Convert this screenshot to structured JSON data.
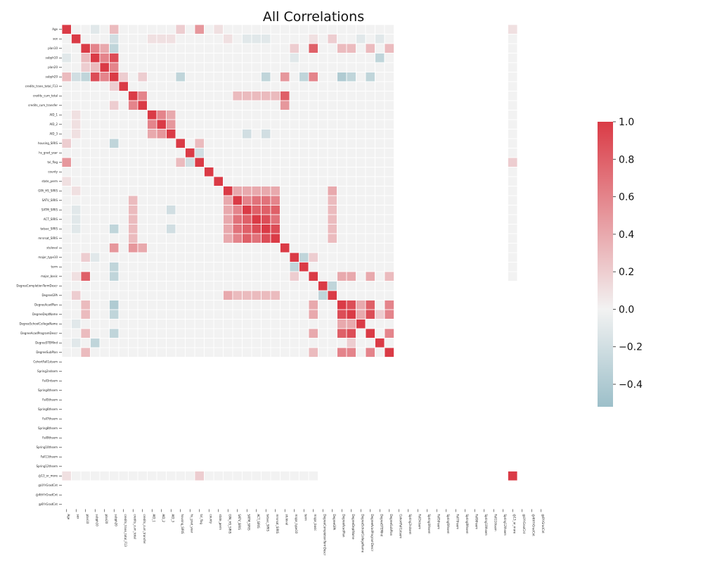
{
  "chart_data": {
    "type": "heatmap",
    "title": "All Correlations",
    "variables": [
      "Age",
      "sex",
      "plan10",
      "subph10",
      "plan20",
      "subph20",
      "credits_trans_total_F13",
      "credits_cum_total",
      "credits_cum_transfer",
      "AID_1",
      "AID_2",
      "AID_3",
      "housing_SIRIS",
      "hs_grad_year",
      "txl_flag",
      "county",
      "state_perm",
      "GPA_HS_SIRIS",
      "SATV_SIRIS",
      "SATM_SIRIS",
      "ACT_SIRIS",
      "tatsac_SIRIS",
      "mrsrsat_SIRIS",
      "stuleval",
      "major_type10",
      "term",
      "major_basic",
      "DegreeCompletionTermDescr",
      "DegreeGPA",
      "DegreeAcadPlan",
      "DegreeDeptName",
      "DegreeSchoolCollegeName",
      "DegreeAcadProgramDescr",
      "DegreeSTEMInd",
      "DegreeSubPlan",
      "CohortFall1stsem",
      "Spring2ndsem",
      "Fall3rdsem",
      "Spring4thsem",
      "Fall5thsem",
      "Spring6thsem",
      "Fall7thsem",
      "Spring8thsem",
      "Fall9thsem",
      "Spring10thsem",
      "Fall11thsem",
      "Spring12thsem",
      "@13_or_more",
      "@UYrGradCnt",
      "@4thYrGradCnt",
      "@6YrGradCnt"
    ],
    "colorbar": {
      "min": -0.52,
      "max": 1.0,
      "ticks": [
        1.0,
        0.8,
        0.6,
        0.4,
        0.2,
        0.0,
        -0.2,
        -0.4
      ],
      "tick_labels": [
        "1.0",
        "0.8",
        "0.6",
        "0.4",
        "0.2",
        "0.0",
        "−0.2",
        "−0.4"
      ]
    },
    "colors": {
      "negative": "#9cbfc9",
      "zero": "#f2f2f2",
      "positive": "#da3b46"
    },
    "blank_from_index": 35,
    "blank_tail_row_exceptions": [
      47
    ],
    "blank_tail_col_exceptions": [
      47
    ],
    "cells": [
      [
        0,
        0,
        1.0
      ],
      [
        0,
        3,
        -0.1
      ],
      [
        0,
        5,
        0.3
      ],
      [
        0,
        12,
        0.2
      ],
      [
        0,
        14,
        0.5
      ],
      [
        0,
        16,
        0.1
      ],
      [
        1,
        1,
        1.0
      ],
      [
        1,
        5,
        -0.2
      ],
      [
        1,
        9,
        0.1
      ],
      [
        1,
        10,
        0.1
      ],
      [
        1,
        11,
        0.1
      ],
      [
        1,
        17,
        0.1
      ],
      [
        1,
        19,
        -0.1
      ],
      [
        1,
        20,
        -0.1
      ],
      [
        1,
        21,
        -0.1
      ],
      [
        1,
        26,
        0.1
      ],
      [
        1,
        28,
        0.2
      ],
      [
        1,
        31,
        -0.1
      ],
      [
        1,
        33,
        -0.1
      ],
      [
        2,
        2,
        1.0
      ],
      [
        2,
        3,
        0.6
      ],
      [
        2,
        4,
        0.4
      ],
      [
        2,
        5,
        -0.3
      ],
      [
        2,
        24,
        0.2
      ],
      [
        2,
        26,
        0.8
      ],
      [
        2,
        29,
        0.3
      ],
      [
        2,
        30,
        0.3
      ],
      [
        2,
        32,
        0.3
      ],
      [
        2,
        34,
        0.3
      ],
      [
        3,
        3,
        1.0
      ],
      [
        3,
        4,
        0.6
      ],
      [
        3,
        5,
        0.9
      ],
      [
        3,
        0,
        -0.1
      ],
      [
        3,
        2,
        0.3
      ],
      [
        3,
        24,
        -0.1
      ],
      [
        3,
        33,
        -0.3
      ],
      [
        4,
        4,
        1.0
      ],
      [
        4,
        5,
        0.6
      ],
      [
        4,
        2,
        0.2
      ],
      [
        4,
        3,
        0.3
      ],
      [
        5,
        5,
        1.0
      ],
      [
        5,
        0,
        0.3
      ],
      [
        5,
        1,
        -0.2
      ],
      [
        5,
        2,
        -0.3
      ],
      [
        5,
        3,
        0.9
      ],
      [
        5,
        4,
        0.6
      ],
      [
        5,
        12,
        -0.3
      ],
      [
        5,
        21,
        -0.3
      ],
      [
        5,
        23,
        0.5
      ],
      [
        5,
        25,
        -0.3
      ],
      [
        5,
        26,
        0.6
      ],
      [
        5,
        29,
        -0.4
      ],
      [
        5,
        30,
        -0.3
      ],
      [
        5,
        32,
        -0.3
      ],
      [
        6,
        6,
        1.0
      ],
      [
        6,
        5,
        0.2
      ],
      [
        7,
        7,
        1.0
      ],
      [
        7,
        8,
        0.6
      ],
      [
        7,
        23,
        0.8
      ],
      [
        7,
        18,
        0.3
      ],
      [
        7,
        19,
        0.3
      ],
      [
        7,
        20,
        0.3
      ],
      [
        7,
        21,
        0.3
      ],
      [
        7,
        22,
        0.3
      ],
      [
        8,
        8,
        1.0
      ],
      [
        8,
        7,
        0.6
      ],
      [
        8,
        5,
        0.2
      ],
      [
        8,
        23,
        0.5
      ],
      [
        9,
        9,
        1.0
      ],
      [
        9,
        10,
        0.6
      ],
      [
        9,
        11,
        0.4
      ],
      [
        10,
        10,
        1.0
      ],
      [
        10,
        9,
        0.6
      ],
      [
        10,
        11,
        0.5
      ],
      [
        11,
        11,
        1.0
      ],
      [
        11,
        9,
        0.4
      ],
      [
        11,
        10,
        0.5
      ],
      [
        11,
        19,
        -0.2
      ],
      [
        11,
        21,
        -0.2
      ],
      [
        12,
        12,
        1.0
      ],
      [
        12,
        0,
        0.2
      ],
      [
        12,
        5,
        -0.3
      ],
      [
        12,
        14,
        0.3
      ],
      [
        13,
        13,
        1.0
      ],
      [
        13,
        14,
        -0.2
      ],
      [
        14,
        14,
        1.0
      ],
      [
        14,
        0,
        0.5
      ],
      [
        14,
        12,
        0.3
      ],
      [
        14,
        13,
        -0.2
      ],
      [
        15,
        15,
        1.0
      ],
      [
        16,
        16,
        1.0
      ],
      [
        17,
        17,
        1.0
      ],
      [
        17,
        18,
        0.4
      ],
      [
        17,
        19,
        0.4
      ],
      [
        17,
        20,
        0.4
      ],
      [
        17,
        21,
        0.4
      ],
      [
        17,
        22,
        0.4
      ],
      [
        17,
        28,
        0.4
      ],
      [
        18,
        18,
        1.0
      ],
      [
        18,
        19,
        0.6
      ],
      [
        18,
        20,
        0.7
      ],
      [
        18,
        21,
        0.7
      ],
      [
        18,
        22,
        0.6
      ],
      [
        18,
        7,
        0.3
      ],
      [
        19,
        19,
        1.0
      ],
      [
        19,
        18,
        0.6
      ],
      [
        19,
        20,
        0.8
      ],
      [
        19,
        21,
        0.8
      ],
      [
        19,
        22,
        0.8
      ],
      [
        20,
        20,
        1.0
      ],
      [
        20,
        18,
        0.7
      ],
      [
        20,
        19,
        0.8
      ],
      [
        20,
        21,
        0.9
      ],
      [
        20,
        22,
        0.7
      ],
      [
        21,
        21,
        1.0
      ],
      [
        21,
        18,
        0.7
      ],
      [
        21,
        19,
        0.8
      ],
      [
        21,
        20,
        0.9
      ],
      [
        21,
        22,
        0.9
      ],
      [
        22,
        22,
        1.0
      ],
      [
        22,
        18,
        0.6
      ],
      [
        22,
        19,
        0.8
      ],
      [
        22,
        20,
        0.7
      ],
      [
        22,
        21,
        0.9
      ],
      [
        23,
        23,
        1.0
      ],
      [
        23,
        5,
        0.5
      ],
      [
        23,
        7,
        0.5
      ],
      [
        23,
        8,
        0.4
      ],
      [
        24,
        24,
        1.0
      ],
      [
        24,
        25,
        -0.3
      ],
      [
        24,
        26,
        0.2
      ],
      [
        25,
        25,
        1.0
      ],
      [
        25,
        24,
        -0.3
      ],
      [
        26,
        26,
        1.0
      ],
      [
        26,
        2,
        0.8
      ],
      [
        26,
        5,
        -0.3
      ],
      [
        26,
        29,
        0.4
      ],
      [
        26,
        30,
        0.4
      ],
      [
        26,
        32,
        0.4
      ],
      [
        26,
        34,
        0.3
      ],
      [
        27,
        27,
        1.0
      ],
      [
        27,
        28,
        -0.3
      ],
      [
        28,
        28,
        1.0
      ],
      [
        28,
        27,
        -0.3
      ],
      [
        28,
        17,
        0.4
      ],
      [
        28,
        18,
        0.3
      ],
      [
        28,
        19,
        0.3
      ],
      [
        28,
        20,
        0.3
      ],
      [
        28,
        21,
        0.3
      ],
      [
        28,
        22,
        0.3
      ],
      [
        29,
        29,
        1.0
      ],
      [
        29,
        30,
        0.9
      ],
      [
        29,
        32,
        0.8
      ],
      [
        29,
        2,
        0.3
      ],
      [
        29,
        5,
        -0.4
      ],
      [
        29,
        34,
        0.6
      ],
      [
        30,
        30,
        1.0
      ],
      [
        30,
        29,
        0.9
      ],
      [
        30,
        32,
        0.9
      ],
      [
        30,
        34,
        0.6
      ],
      [
        31,
        31,
        1.0
      ],
      [
        31,
        29,
        0.4
      ],
      [
        31,
        30,
        0.4
      ],
      [
        32,
        32,
        1.0
      ],
      [
        32,
        29,
        0.8
      ],
      [
        32,
        30,
        0.9
      ],
      [
        32,
        34,
        0.6
      ],
      [
        33,
        33,
        1.0
      ],
      [
        33,
        3,
        -0.3
      ],
      [
        33,
        30,
        0.2
      ],
      [
        34,
        34,
        1.0
      ],
      [
        34,
        29,
        0.6
      ],
      [
        34,
        30,
        0.6
      ],
      [
        34,
        32,
        0.6
      ],
      [
        47,
        47,
        1.0
      ],
      [
        47,
        0,
        0.1
      ],
      [
        47,
        14,
        0.2
      ]
    ]
  }
}
